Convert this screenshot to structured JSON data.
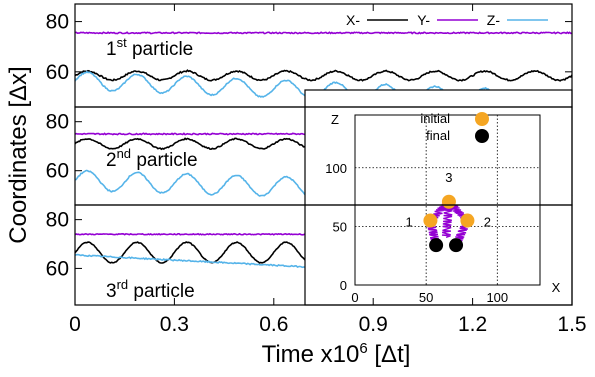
{
  "chart_data": {
    "type": "line",
    "xlabel": "Time x10",
    "xlabel_exponent": "6",
    "xlabel_unit": "[Δt]",
    "ylabel": "Coordinates [Δx]",
    "xlim": [
      0,
      1.5
    ],
    "x_ticks": [
      "0",
      "0.3",
      "0.6",
      "0.9",
      "1.2",
      "1.5"
    ],
    "legend": {
      "position": "top",
      "entries": [
        {
          "label": "X-",
          "color": "#000000"
        },
        {
          "label": "Y-",
          "color": "#9400d3"
        },
        {
          "label": "Z-",
          "color": "#56b4e9"
        }
      ]
    },
    "panels": [
      {
        "label_prefix": "1",
        "label_sup": "st",
        "label_suffix": " particle",
        "ylim": [
          46,
          87
        ],
        "y_ticks": [
          "80",
          "60"
        ],
        "series": [
          {
            "name": "X-",
            "color": "#000000",
            "mean": 58.5,
            "amplitude": 1.8,
            "periods": 10,
            "noise": 0.6
          },
          {
            "name": "Y-",
            "color": "#9400d3",
            "mean": 75.5,
            "amplitude": 0.2,
            "periods": 0,
            "noise": 0.5
          },
          {
            "name": "Z-",
            "color": "#56b4e9",
            "start": 56.5,
            "end": 48.5,
            "amplitude": 3.5,
            "periods": 10,
            "noise": 0.5
          }
        ]
      },
      {
        "label_prefix": "2",
        "label_sup": "nd",
        "label_suffix": " particle",
        "ylim": [
          46,
          86
        ],
        "y_ticks": [
          "80",
          "60"
        ],
        "series": [
          {
            "name": "X-",
            "color": "#000000",
            "mean": 71,
            "amplitude": 2.0,
            "periods": 10,
            "noise": 0.5
          },
          {
            "name": "Y-",
            "color": "#9400d3",
            "mean": 75,
            "amplitude": 0.2,
            "periods": 0,
            "noise": 0.5
          },
          {
            "name": "Z-",
            "color": "#56b4e9",
            "start": 56,
            "end": 50,
            "amplitude": 4.0,
            "periods": 10,
            "noise": 0.5
          }
        ]
      },
      {
        "label_prefix": "3",
        "label_sup": "rd",
        "label_suffix": " particle",
        "ylim": [
          45,
          86
        ],
        "y_ticks": [
          "80",
          "60"
        ],
        "series": [
          {
            "name": "X-",
            "color": "#000000",
            "mean": 66.5,
            "amplitude": 4.2,
            "periods": 10,
            "noise": 0.4
          },
          {
            "name": "Y-",
            "color": "#9400d3",
            "mean": 74,
            "amplitude": 0.1,
            "periods": 0,
            "noise": 0.4
          },
          {
            "name": "Z-",
            "color": "#56b4e9",
            "start": 65.5,
            "end": 55,
            "amplitude": 0.3,
            "periods": 0,
            "noise": 0.5
          }
        ]
      }
    ],
    "inset": {
      "xlabel": "X",
      "ylabel": "Z",
      "xlim": [
        0,
        130
      ],
      "ylim": [
        0,
        145
      ],
      "x_ticks": [
        0,
        50,
        100
      ],
      "y_ticks": [
        0,
        50,
        100
      ],
      "grid": true,
      "legend": [
        {
          "label": "initial",
          "color": "#f5a623"
        },
        {
          "label": "final",
          "color": "#000000"
        }
      ],
      "region_labels": [
        {
          "text": "1",
          "x": 38,
          "z": 54
        },
        {
          "text": "2",
          "x": 93,
          "z": 54
        },
        {
          "text": "3",
          "x": 66,
          "z": 92
        }
      ],
      "initial_points": [
        {
          "x": 53,
          "z": 55
        },
        {
          "x": 66,
          "z": 71
        },
        {
          "x": 79,
          "z": 55
        }
      ],
      "final_points": [
        {
          "x": 57,
          "z": 34
        },
        {
          "x": 71,
          "z": 34
        }
      ],
      "trajectory_color": "#9400d3"
    }
  }
}
